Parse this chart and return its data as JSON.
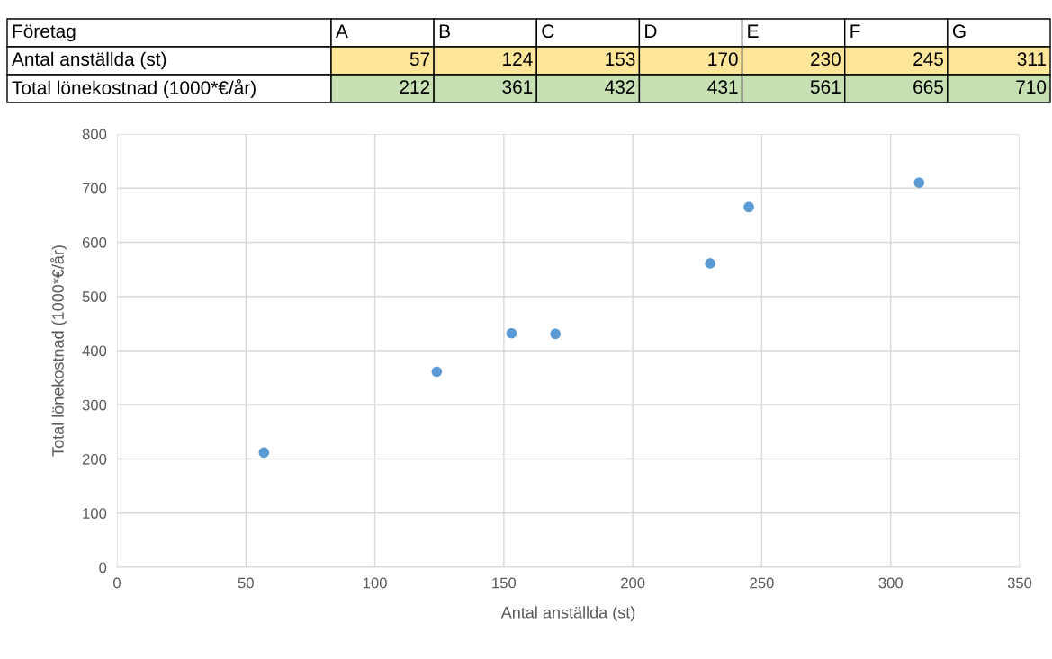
{
  "chart_data": [
    {
      "type": "other",
      "categories": [
        "Företag",
        "A",
        "B",
        "C",
        "D",
        "E",
        "F",
        "G"
      ],
      "annotations": [
        "Antal anställda (st)",
        "57",
        "124",
        "153",
        "170",
        "230",
        "245",
        "311",
        "Total lönekostnad (1000*€/år)",
        "212",
        "361",
        "432",
        "431",
        "561",
        "665",
        "710"
      ]
    },
    {
      "type": "scatter",
      "xlabel": "Antal anställda (st)",
      "ylabel": "Total lönekostnad (1000*€/år)",
      "x": [
        57,
        124,
        153,
        170,
        230,
        245,
        311
      ],
      "values": [
        212,
        361,
        432,
        431,
        561,
        665,
        710
      ],
      "color": "#5b9bd5",
      "marker": "circle",
      "xlim": [
        0,
        350
      ],
      "xticks": [
        0,
        50,
        100,
        150,
        200,
        250,
        300,
        350
      ],
      "ylim": [
        0,
        800
      ],
      "yticks": [
        0,
        100,
        200,
        300,
        400,
        500,
        600,
        700,
        800
      ],
      "grid": true
    }
  ]
}
